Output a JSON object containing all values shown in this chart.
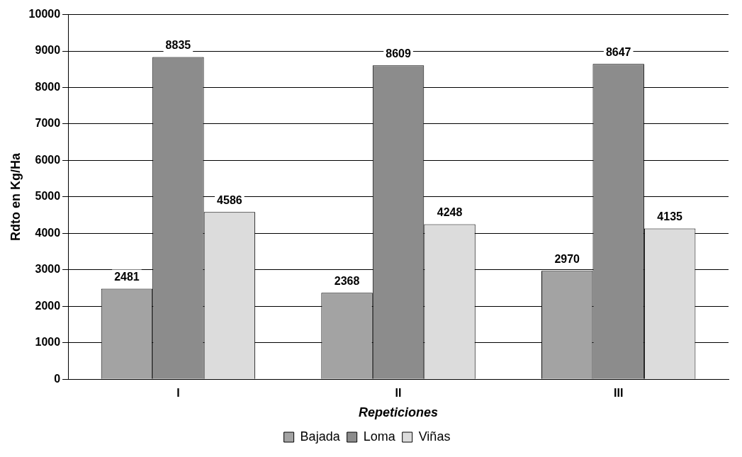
{
  "chart_data": {
    "type": "bar",
    "xlabel": "Repeticiones",
    "ylabel": "Rdto en Kg/Ha",
    "categories": [
      "I",
      "II",
      "III"
    ],
    "series": [
      {
        "name": "Bajada",
        "color": "#a3a3a3",
        "values": [
          2481,
          2368,
          2970
        ]
      },
      {
        "name": "Loma",
        "color": "#8c8c8c",
        "values": [
          8835,
          8609,
          8647
        ]
      },
      {
        "name": "Viñas",
        "color": "#dcdcdc",
        "values": [
          4586,
          4248,
          4135
        ]
      }
    ],
    "ylim": [
      0,
      10000
    ],
    "yticks": [
      0,
      1000,
      2000,
      3000,
      4000,
      5000,
      6000,
      7000,
      8000,
      9000,
      10000
    ],
    "grid": "y",
    "legend": "bottom",
    "data_labels": true
  }
}
